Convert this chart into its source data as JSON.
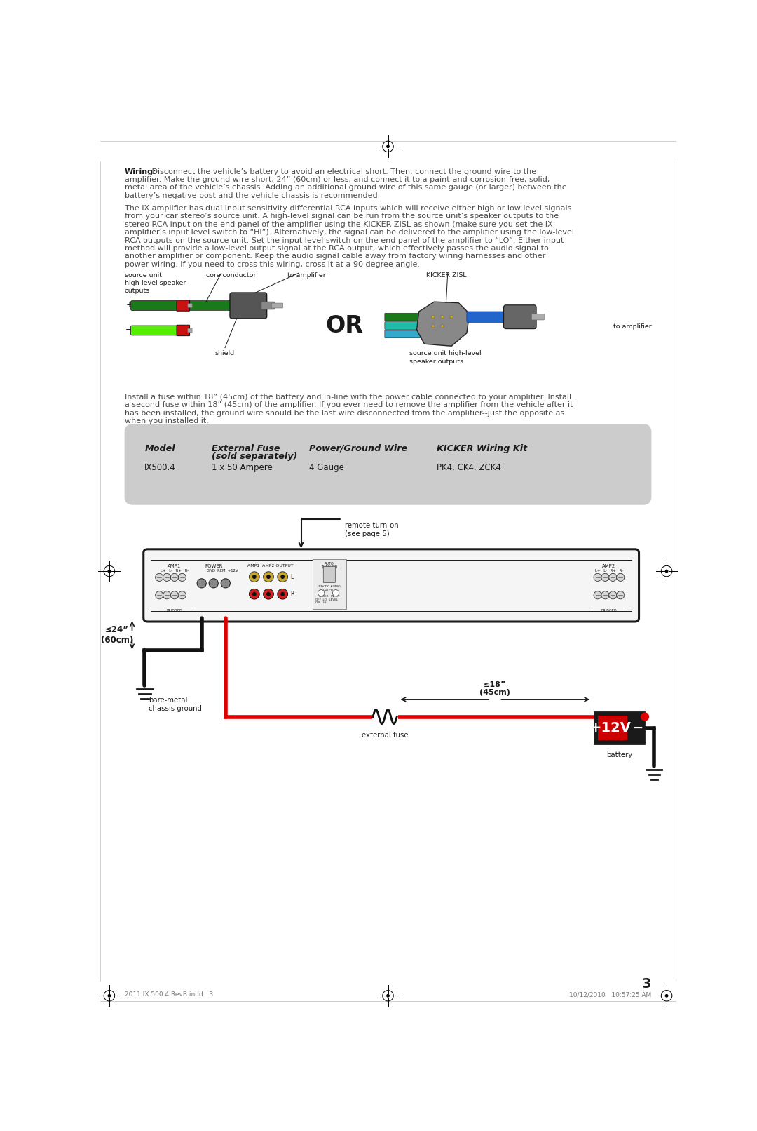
{
  "bg_color": "#ffffff",
  "page_width": 10.8,
  "page_height": 16.12,
  "text_color": "#4a4a4a",
  "dark_color": "#1a1a1a",
  "table_bg": "#cccccc",
  "wiring_bold": "Wiring:",
  "p1_lines": [
    " Disconnect the vehicle’s battery to avoid an electrical short. Then, connect the ground wire to the",
    "amplifier. Make the ground wire short, 24” (60cm) or less, and connect it to a paint-and-corrosion-free, solid,",
    "metal area of the vehicle’s chassis. Adding an additional ground wire of this same gauge (or larger) between the",
    "battery’s negative post and the vehicle chassis is recommended."
  ],
  "p2_lines": [
    "The IX amplifier has dual input sensitivity differential RCA inputs which will receive either high or low level signals",
    "from your car stereo’s source unit. A high-level signal can be run from the source unit’s speaker outputs to the",
    "stereo RCA input on the end panel of the amplifier using the KICKER ZISL as shown (make sure you set the IX",
    "amplifier’s input level switch to “HI”). Alternatively, the signal can be delivered to the amplifier using the low-level",
    "RCA outputs on the source unit. Set the input level switch on the end panel of the amplifier to “LO”. Either input",
    "method will provide a low-level output signal at the RCA output, which effectively passes the audio signal to",
    "another amplifier or component. Keep the audio signal cable away from factory wiring harnesses and other",
    "power wiring. If you need to cross this wiring, cross it at a 90 degree angle."
  ],
  "p3_lines": [
    "Install a fuse within 18” (45cm) of the battery and in-line with the power cable connected to your amplifier. Install",
    "a second fuse within 18” (45cm) of the amplifier. If you ever need to remove the amplifier from the vehicle after it",
    "has been installed, the ground wire should be the last wire disconnected from the amplifier--just the opposite as",
    "when you installed it."
  ],
  "table_header_col1": "Model",
  "table_header_col2a": "External Fuse",
  "table_header_col2b": "(sold separately)",
  "table_header_col3": "Power/Ground Wire",
  "table_header_col4": "KICKER Wiring Kit",
  "table_data_col1": "IX500.4",
  "table_data_col2": "1 x 50 Ampere",
  "table_data_col3": "4 Gauge",
  "table_data_col4": "PK4, CK4, ZCK4",
  "footer_left": "2011 IX 500.4 RevB.indd   3",
  "footer_right": "10/12/2010   10:57:25 AM",
  "footer_center": "3"
}
